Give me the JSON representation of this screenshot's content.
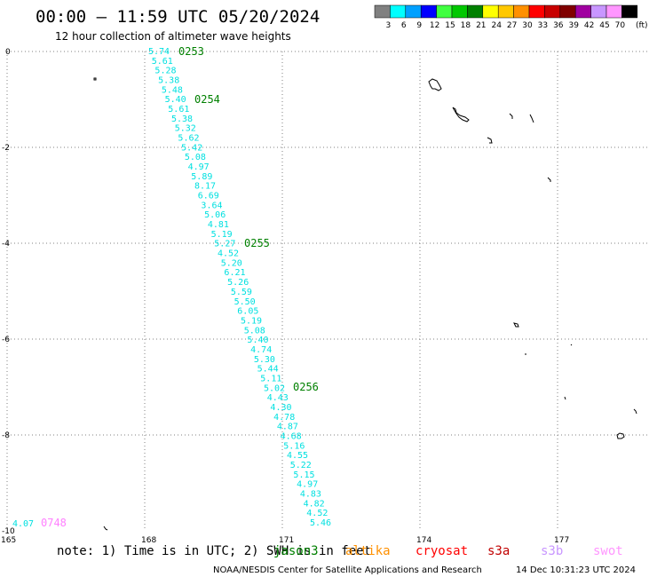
{
  "header": {
    "title": "00:00 – 11:59 UTC 05/20/2024",
    "subtitle": "12 hour collection of altimeter wave heights"
  },
  "legend": {
    "unit": "(ft)",
    "bins": [
      {
        "label": "3",
        "color": "#808080"
      },
      {
        "label": "6",
        "color": "#00ffff"
      },
      {
        "label": "9",
        "color": "#00a0ff"
      },
      {
        "label": "12",
        "color": "#0000ff"
      },
      {
        "label": "15",
        "color": "#40ff40"
      },
      {
        "label": "18",
        "color": "#00c800"
      },
      {
        "label": "21",
        "color": "#008000"
      },
      {
        "label": "24",
        "color": "#ffff00"
      },
      {
        "label": "27",
        "color": "#ffc800"
      },
      {
        "label": "30",
        "color": "#ff9000"
      },
      {
        "label": "33",
        "color": "#ff0000"
      },
      {
        "label": "36",
        "color": "#c80000"
      },
      {
        "label": "39",
        "color": "#800000"
      },
      {
        "label": "42",
        "color": "#a000a0"
      },
      {
        "label": "45",
        "color": "#c896ff"
      },
      {
        "label": "70",
        "color": "#ff96ff"
      },
      {
        "label": "",
        "color": "#000000"
      }
    ]
  },
  "map": {
    "lon_ticks": [
      "165",
      "168",
      "171",
      "174",
      "177"
    ],
    "lat_ticks": [
      "0",
      "-2",
      "-4",
      "-6",
      "-8",
      "-10"
    ],
    "grid_color": "#808080",
    "swh_color": "#00e0e0",
    "time_color": "#008000"
  },
  "track": {
    "values": [
      "5.74",
      "5.61",
      "5.28",
      "5.38",
      "5.48",
      "5.40",
      "5.61",
      "5.38",
      "5.32",
      "5.62",
      "5.42",
      "5.08",
      "4.97",
      "5.89",
      "8.17",
      "6.69",
      "3.64",
      "5.06",
      "4.81",
      "5.19",
      "5.27",
      "4.52",
      "5.20",
      "6.21",
      "5.26",
      "5.59",
      "5.50",
      "6.05",
      "5.19",
      "5.08",
      "5.40",
      "4.74",
      "5.30",
      "5.44",
      "5.11",
      "5.02",
      "4.43",
      "4.30",
      "4.78",
      "4.87",
      "4.68",
      "5.16",
      "4.55",
      "5.22",
      "5.15",
      "4.97",
      "4.83",
      "4.82",
      "4.52",
      "5.46"
    ],
    "times": [
      "0253",
      "0254",
      "0255",
      "0256"
    ],
    "lone_value": "4.07",
    "lone_time": "0748",
    "lone_time_color": "#ff80ff"
  },
  "footer": {
    "note": "note: 1) Time is in UTC; 2) SWH is in feet",
    "satellites": [
      {
        "name": "jason3",
        "color": "#008000"
      },
      {
        "name": "altika",
        "color": "#ff9000"
      },
      {
        "name": "cryosat",
        "color": "#ff0000"
      },
      {
        "name": "s3a",
        "color": "#c00000"
      },
      {
        "name": "s3b",
        "color": "#c896ff"
      },
      {
        "name": "swot",
        "color": "#ff96ff"
      }
    ],
    "credit_left": "NOAA/NESDIS Center for Satellite Applications and Research",
    "credit_right": "14 Dec 10:31:23 UTC 2024"
  }
}
